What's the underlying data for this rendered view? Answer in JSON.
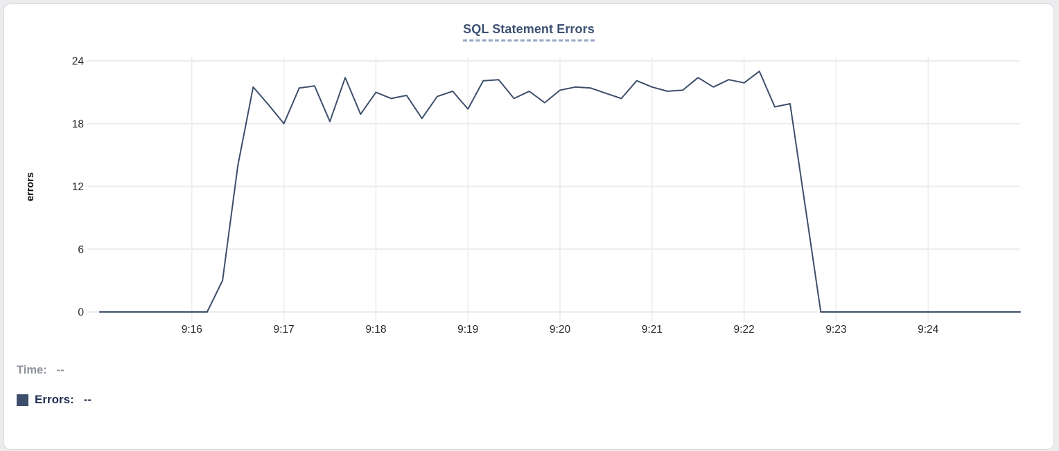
{
  "chart_data": {
    "type": "line",
    "title": "SQL Statement Errors",
    "xlabel": "",
    "ylabel": "errors",
    "ylim": [
      0,
      24
    ],
    "yticks": [
      0,
      6,
      12,
      18,
      24
    ],
    "xticks": [
      "9:16",
      "9:17",
      "9:18",
      "9:19",
      "9:20",
      "9:21",
      "9:22",
      "9:23",
      "9:24"
    ],
    "x_start": "9:15:00",
    "x_end": "9:25:00",
    "x_interval_seconds": 10,
    "grid": true,
    "legend_position": "bottom-left",
    "series": [
      {
        "name": "Errors",
        "color": "#3d4e6b",
        "values": [
          0,
          0,
          0,
          0,
          0,
          0,
          0,
          0,
          3,
          14,
          21.5,
          19.8,
          18,
          21.4,
          21.6,
          18.2,
          22.4,
          18.9,
          21,
          20.4,
          20.7,
          18.5,
          20.6,
          21.1,
          19.4,
          22.1,
          22.2,
          20.4,
          21.1,
          20,
          21.2,
          21.5,
          21.4,
          20.9,
          20.4,
          22.1,
          21.5,
          21.1,
          21.2,
          22.4,
          21.5,
          22.2,
          21.9,
          23,
          19.6,
          19.9,
          10,
          0,
          0,
          0,
          0,
          0,
          0,
          0,
          0,
          0,
          0,
          0,
          0,
          0,
          0
        ]
      }
    ]
  },
  "tooltip": {
    "time_label": "Time:",
    "time_value": "--",
    "errors_label": "Errors:",
    "errors_value": "--"
  },
  "colors": {
    "line": "#3d4e6b",
    "title": "#3d5174",
    "title_underline": "#97a4c4",
    "grid": "#ececec",
    "tick_text": "#26272a",
    "time_text": "#8d919a",
    "errors_text": "#1d2c50",
    "card_border": "#d9d9de",
    "card_bg": "#ffffff"
  }
}
